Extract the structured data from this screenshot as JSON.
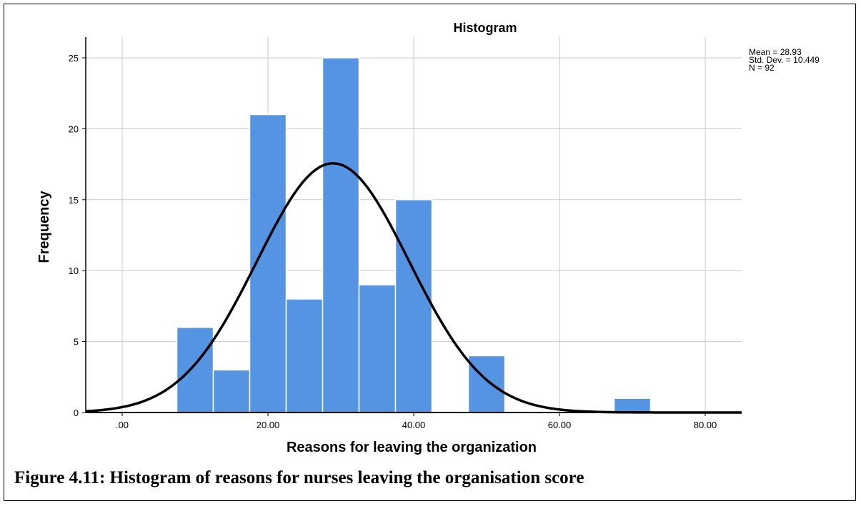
{
  "chart_data": {
    "type": "bar",
    "title": "Histogram",
    "xlabel": "Reasons for leaving the organization",
    "ylabel": "Frequency",
    "xlim": [
      -5,
      85
    ],
    "ylim": [
      0,
      25
    ],
    "x_ticks": [
      0,
      20,
      40,
      60,
      80
    ],
    "x_tick_labels": [
      ".00",
      "20.00",
      "40.00",
      "60.00",
      "80.00"
    ],
    "y_ticks": [
      0,
      5,
      10,
      15,
      20,
      25
    ],
    "y_tick_labels": [
      "0",
      "5",
      "10",
      "15",
      "20",
      "25"
    ],
    "bin_width": 5,
    "bins": [
      {
        "x_start": 7.5,
        "x_end": 12.5,
        "value": 6
      },
      {
        "x_start": 12.5,
        "x_end": 17.5,
        "value": 3
      },
      {
        "x_start": 17.5,
        "x_end": 22.5,
        "value": 21
      },
      {
        "x_start": 22.5,
        "x_end": 27.5,
        "value": 8
      },
      {
        "x_start": 27.5,
        "x_end": 32.5,
        "value": 25
      },
      {
        "x_start": 32.5,
        "x_end": 37.5,
        "value": 9
      },
      {
        "x_start": 37.5,
        "x_end": 42.5,
        "value": 15
      },
      {
        "x_start": 47.5,
        "x_end": 52.5,
        "value": 4
      },
      {
        "x_start": 67.5,
        "x_end": 72.5,
        "value": 1
      }
    ],
    "normal_curve": {
      "mean": 28.93,
      "sd": 10.449,
      "n": 92
    },
    "stats_text": [
      "Mean = 28.93",
      "Std. Dev. = 10.449",
      "N = 92"
    ],
    "grid": true,
    "colors": {
      "bar": "#5594E3",
      "bar_edge": "#ffffff",
      "curve": "#000000",
      "grid": "#c8c8c8"
    }
  },
  "caption": "Figure 4.11: Histogram of reasons for nurses leaving the organisation score"
}
